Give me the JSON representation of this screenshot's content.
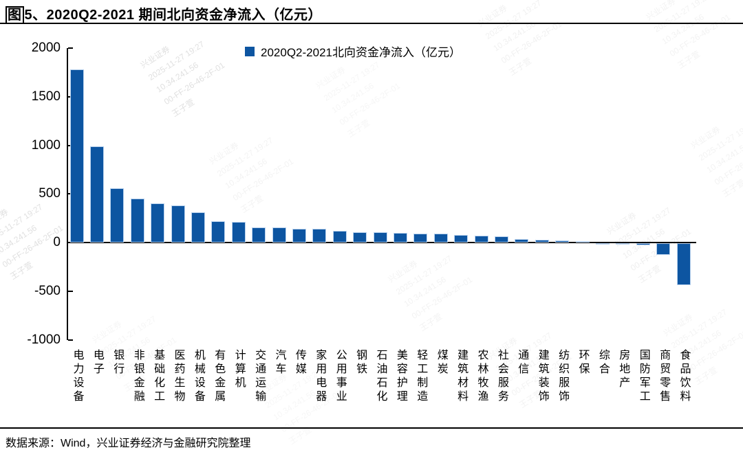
{
  "title": {
    "boxed_char": "图",
    "rest": "5、2020Q2-2021 期间北向资金净流入（亿元）"
  },
  "legend": {
    "label": "2020Q2-2021北向资金净流入（亿元）"
  },
  "footer": {
    "source_text": "数据来源：Wind，兴业证券经济与金融研究院整理"
  },
  "watermark": {
    "lines": [
      "兴业证券",
      "2025-11-27 19:27",
      "10.34.241.56",
      "00-FF-26-46-2F-01",
      "王子萱"
    ]
  },
  "colors": {
    "bar": "#0d55a1",
    "bar_edge": "#b9d2ee",
    "axis": "#000000",
    "watermark": "#666666"
  },
  "chart_data": {
    "type": "bar",
    "title": "图5、2020Q2-2021 期间北向资金净流入（亿元）",
    "legend": "2020Q2-2021北向资金净流入（亿元）",
    "ylabel": "",
    "xlabel": "",
    "ylim": [
      -1000,
      2000
    ],
    "yticks": [
      2000,
      1500,
      1000,
      500,
      0,
      -500,
      -1000
    ],
    "grid": false,
    "legend_position": "top-center",
    "categories": [
      "电力设备",
      "电子",
      "银行",
      "非银金融",
      "基础化工",
      "医药生物",
      "机械设备",
      "有色金属",
      "计算机",
      "交通运输",
      "汽车",
      "传媒",
      "家用电器",
      "公用事业",
      "钢铁",
      "石油石化",
      "美容护理",
      "轻工制造",
      "煤炭",
      "建筑材料",
      "农林牧渔",
      "社会服务",
      "通信",
      "建筑装饰",
      "纺织服饰",
      "环保",
      "综合",
      "房地产",
      "国防军工",
      "商贸零售",
      "食品饮料"
    ],
    "values": [
      1780,
      990,
      555,
      455,
      405,
      380,
      310,
      216,
      212,
      158,
      153,
      140,
      138,
      119,
      108,
      106,
      100,
      95,
      93,
      80,
      73,
      65,
      37,
      26,
      24,
      14,
      -8,
      -12,
      -22,
      -120,
      -430
    ]
  }
}
